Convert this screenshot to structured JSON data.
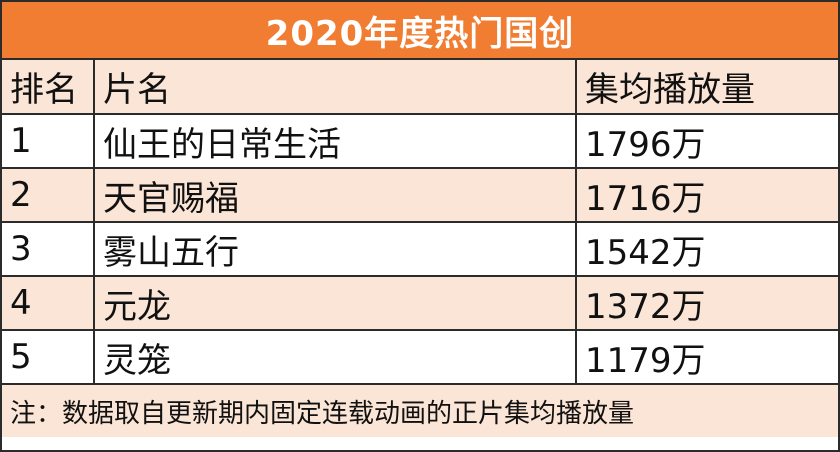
{
  "title": "2020年度热门国创",
  "headers": {
    "rank": "排名",
    "title": "片名",
    "views": "集均播放量"
  },
  "rows": [
    {
      "rank": "1",
      "title": "仙王的日常生活",
      "views": "1796万"
    },
    {
      "rank": "2",
      "title": "天官赐福",
      "views": "1716万"
    },
    {
      "rank": "3",
      "title": "雾山五行",
      "views": "1542万"
    },
    {
      "rank": "4",
      "title": "元龙",
      "views": "1372万"
    },
    {
      "rank": "5",
      "title": "灵笼",
      "views": "1179万"
    }
  ],
  "note": "注：数据取自更新期内固定连载动画的正片集均播放量",
  "colors": {
    "title_background": "#f07d31",
    "shaded_row": "#fbe5d6",
    "border": "#2b2b2b"
  }
}
